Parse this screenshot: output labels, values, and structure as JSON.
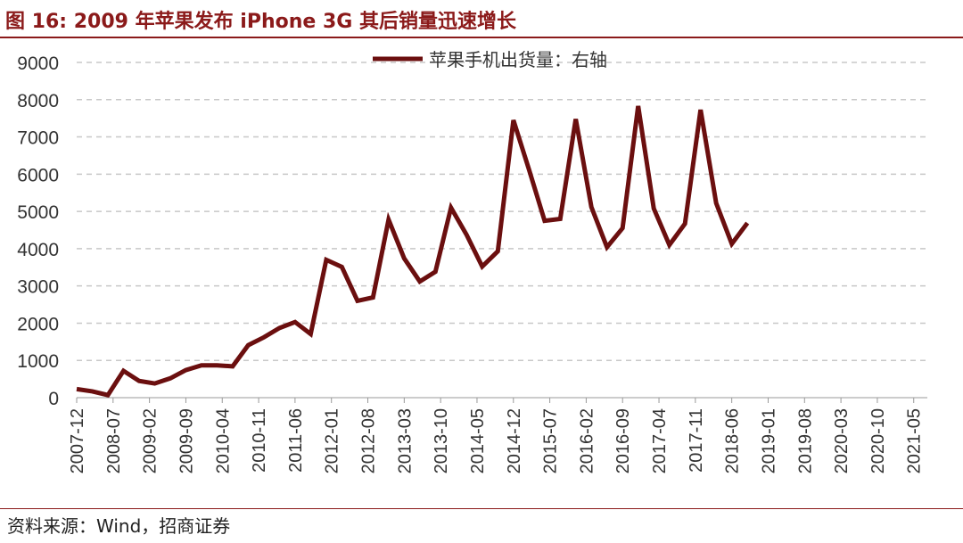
{
  "figure": {
    "title": "图 16:  2009 年苹果发布 iPhone 3G 其后销量迅速增长",
    "source": "资料来源：Wind，招商证券"
  },
  "colors": {
    "accent": "#8b1a1a",
    "series_line": "#6b0f0f",
    "grid": "#c8c8c8"
  },
  "chart_data": {
    "type": "line",
    "title": "",
    "xlabel": "",
    "ylabel": "",
    "ylim": [
      0,
      9000
    ],
    "yticks": [
      0,
      1000,
      2000,
      3000,
      4000,
      5000,
      6000,
      7000,
      8000,
      9000
    ],
    "x_tick_labels": [
      "2007-12",
      "2008-07",
      "2009-02",
      "2009-09",
      "2010-04",
      "2010-11",
      "2011-06",
      "2012-01",
      "2012-08",
      "2013-03",
      "2013-10",
      "2014-05",
      "2014-12",
      "2015-07",
      "2016-02",
      "2016-09",
      "2017-04",
      "2017-11",
      "2018-06",
      "2019-01",
      "2019-08",
      "2020-03",
      "2020-10",
      "2021-05"
    ],
    "grid": "horizontal dashed",
    "legend_position": "top-center",
    "series": [
      {
        "name": "苹果手机出货量：右轴",
        "x": [
          "2007-12",
          "2008-03",
          "2008-06",
          "2008-09",
          "2008-12",
          "2009-03",
          "2009-06",
          "2009-09",
          "2009-12",
          "2010-03",
          "2010-06",
          "2010-09",
          "2010-12",
          "2011-03",
          "2011-06",
          "2011-09",
          "2011-12",
          "2012-03",
          "2012-06",
          "2012-09",
          "2012-12",
          "2013-03",
          "2013-06",
          "2013-09",
          "2013-12",
          "2014-03",
          "2014-06",
          "2014-09",
          "2014-12",
          "2015-03",
          "2015-06",
          "2015-09",
          "2015-12",
          "2016-03",
          "2016-06",
          "2016-09",
          "2016-12",
          "2017-03",
          "2017-06",
          "2017-09",
          "2017-12",
          "2018-03",
          "2018-06",
          "2018-09"
        ],
        "values": [
          230,
          170,
          70,
          720,
          450,
          380,
          520,
          740,
          870,
          870,
          840,
          1410,
          1620,
          1870,
          2030,
          1710,
          3700,
          3510,
          2600,
          2690,
          4780,
          3740,
          3120,
          3380,
          5100,
          4370,
          3520,
          3930,
          7450,
          6120,
          4750,
          4800,
          7480,
          5120,
          4040,
          4550,
          7830,
          5080,
          4100,
          4670,
          7730,
          5220,
          4130,
          4690
        ]
      }
    ]
  }
}
